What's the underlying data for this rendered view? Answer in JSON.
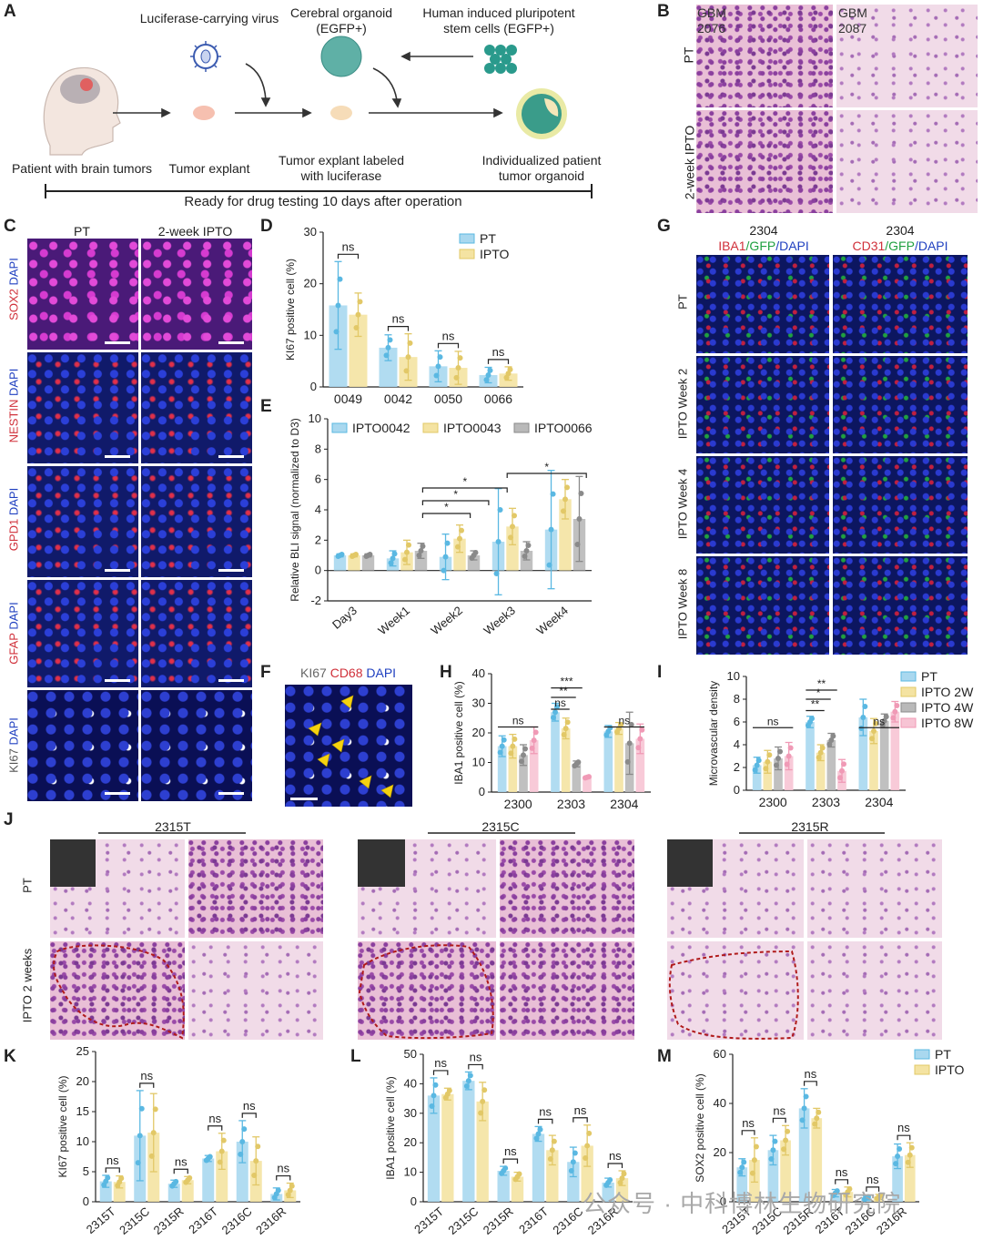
{
  "panel_letters": {
    "A": "A",
    "B": "B",
    "C": "C",
    "D": "D",
    "E": "E",
    "F": "F",
    "G": "G",
    "H": "H",
    "I": "I",
    "J": "J",
    "K": "K",
    "L": "L",
    "M": "M"
  },
  "panelA": {
    "virus": "Luciferase-carrying virus",
    "organoid": "Cerebral organoid\n(EGFP+)",
    "ipsc": "Human induced pluripotent\nstem cells (EGFP+)",
    "patient": "Patient with brain tumors",
    "explant": "Tumor explant",
    "labeled": "Tumor explant labeled\nwith luciferase",
    "individual": "Individualized patient\ntumor organoid",
    "timeline": "Ready for drug testing 10 days after operation"
  },
  "panelB": {
    "col1": "GBM\n2076",
    "col2": "GBM\n2087",
    "row1": "PT",
    "row2": "2-week IPTO"
  },
  "panelC": {
    "col1": "PT",
    "col2": "2-week IPTO",
    "rows": [
      {
        "marker": "SOX2",
        "dapi": "DAPI"
      },
      {
        "marker": "NESTIN",
        "dapi": "DAPI"
      },
      {
        "marker": "GPD1",
        "dapi": "DAPI"
      },
      {
        "marker": "GFAP",
        "dapi": "DAPI"
      },
      {
        "marker": "KI67",
        "dapi": "DAPI"
      }
    ]
  },
  "panelF": {
    "a": "KI67",
    "b": "CD68",
    "c": "DAPI"
  },
  "panelG": {
    "col1_id": "2304",
    "col2_id": "2304",
    "col1_stain": {
      "a": "IBA1",
      "b": "/GFP",
      "c": "/DAPI"
    },
    "col2_stain": {
      "a": "CD31",
      "b": "/GFP",
      "c": "/DAPI"
    },
    "rows": [
      "PT",
      "IPTO Week 2",
      "IPTO Week 4",
      "IPTO Week 8"
    ]
  },
  "panelJ": {
    "cols": [
      "2315T",
      "2315C",
      "2315R"
    ],
    "rows": [
      "PT",
      "IPTO 2 weeks"
    ]
  },
  "watermark": "公众号 · 中科博林生物研究院",
  "colors": {
    "pt": "#a9d8ef",
    "ipto": "#f4e3a2",
    "grey": "#b9b9b9",
    "pink": "#f7c4d4",
    "pt_dot": "#5ab8e2",
    "ipto_dot": "#e2c867",
    "grey_dot": "#8a8a8a",
    "pink_dot": "#f09ab6",
    "red": "#c0392b",
    "blue": "#1f3fb0"
  },
  "chart_data": [
    {
      "id": "D",
      "type": "bar",
      "ylabel": "KI67 positive cell (%)",
      "ylim": [
        0,
        30
      ],
      "yticks": [
        "0",
        "10",
        "20",
        "30"
      ],
      "categories": [
        "0049",
        "0042",
        "0050",
        "0066"
      ],
      "series": [
        {
          "name": "PT",
          "values": [
            15.8,
            7.6,
            4.0,
            2.3
          ],
          "err": [
            8.5,
            2.5,
            3.0,
            1.5
          ]
        },
        {
          "name": "IPTO",
          "values": [
            14.0,
            5.8,
            3.7,
            2.6
          ],
          "err": [
            4.2,
            4.5,
            3.2,
            1.3
          ]
        }
      ],
      "sig": [
        "ns",
        "ns",
        "ns",
        "ns"
      ]
    },
    {
      "id": "E",
      "type": "bar",
      "ylabel": "Relative BLI signal (normalized to D3)",
      "ylim": [
        -2,
        10
      ],
      "yticks": [
        "-2",
        "0",
        "2",
        "4",
        "6",
        "8",
        "10"
      ],
      "categories": [
        "Day3",
        "Week1",
        "Week2",
        "Week3",
        "Week4"
      ],
      "series": [
        {
          "name": "IPTO0042",
          "values": [
            1.0,
            0.8,
            0.9,
            1.9,
            2.7
          ],
          "err": [
            0.1,
            0.5,
            1.5,
            3.5,
            3.9
          ]
        },
        {
          "name": "IPTO0043",
          "values": [
            1.0,
            1.2,
            2.1,
            2.9,
            4.7
          ],
          "err": [
            0.1,
            0.8,
            0.9,
            1.2,
            1.3
          ]
        },
        {
          "name": "IPTO0066",
          "values": [
            1.0,
            1.3,
            1.0,
            1.3,
            3.4
          ],
          "err": [
            0.1,
            0.5,
            0.3,
            0.6,
            2.8
          ]
        }
      ],
      "sig": [
        "*",
        "*",
        "*",
        "*"
      ]
    },
    {
      "id": "H",
      "type": "bar",
      "ylabel": "IBA1 positive cell (%)",
      "ylim": [
        0,
        40
      ],
      "yticks": [
        "0",
        "10",
        "20",
        "30",
        "40"
      ],
      "categories": [
        "2300",
        "2303",
        "2304"
      ],
      "series": [
        {
          "name": "PT",
          "values": [
            15.5,
            27.0,
            20.5
          ],
          "err": [
            3.5,
            3.0,
            2.0
          ]
        },
        {
          "name": "IPTO 2W",
          "values": [
            15.5,
            21.5,
            21.5
          ],
          "err": [
            4.0,
            3.5,
            2.0
          ]
        },
        {
          "name": "IPTO 4W",
          "values": [
            12.5,
            9.5,
            16.5
          ],
          "err": [
            3.5,
            1.0,
            10.5
          ]
        },
        {
          "name": "IPTO 8W",
          "values": [
            17.5,
            5.0,
            18.0
          ],
          "err": [
            4.5,
            0.3,
            5.0
          ]
        }
      ],
      "sig": [
        "ns",
        "ns",
        "**",
        "***",
        "ns"
      ]
    },
    {
      "id": "I",
      "type": "bar",
      "ylabel": "Microvascular density",
      "ylim": [
        0,
        10
      ],
      "yticks": [
        "0",
        "2",
        "4",
        "6",
        "8",
        "10"
      ],
      "categories": [
        "2300",
        "2303",
        "2304"
      ],
      "series": [
        {
          "name": "PT",
          "values": [
            2.2,
            6.0,
            6.4
          ],
          "err": [
            0.7,
            0.5,
            1.6
          ]
        },
        {
          "name": "IPTO 2W",
          "values": [
            2.5,
            3.3,
            5.2
          ],
          "err": [
            1.0,
            0.7,
            1.1
          ]
        },
        {
          "name": "IPTO 4W",
          "values": [
            2.8,
            4.4,
            6.1
          ],
          "err": [
            1.0,
            0.6,
            0.6
          ]
        },
        {
          "name": "IPTO 8W",
          "values": [
            3.0,
            1.7,
            6.9
          ],
          "err": [
            1.2,
            1.0,
            0.9
          ]
        }
      ],
      "sig": [
        "ns",
        "**",
        "*",
        "**",
        "ns"
      ]
    },
    {
      "id": "K",
      "type": "bar",
      "ylabel": "KI67 positive cell (%)",
      "ylim": [
        0,
        25
      ],
      "yticks": [
        "0",
        "5",
        "10",
        "15",
        "20",
        "25"
      ],
      "categories": [
        "2315T",
        "2315C",
        "2315R",
        "2316T",
        "2316C",
        "2316R"
      ],
      "series": [
        {
          "name": "PT",
          "values": [
            3.4,
            11.0,
            3.0,
            7.2,
            10.0,
            1.3
          ],
          "err": [
            1.0,
            7.5,
            0.6,
            0.5,
            3.5,
            1.0
          ]
        },
        {
          "name": "IPTO",
          "values": [
            3.3,
            11.5,
            3.6,
            8.4,
            6.8,
            1.9
          ],
          "err": [
            1.0,
            6.5,
            0.6,
            3.0,
            4.0,
            1.2
          ]
        }
      ],
      "sig": [
        "ns",
        "ns",
        "ns",
        "ns",
        "ns",
        "ns"
      ]
    },
    {
      "id": "L",
      "type": "bar",
      "ylabel": "IBA1 positive cell (%)",
      "ylim": [
        0,
        50
      ],
      "yticks": [
        "0",
        "10",
        "20",
        "30",
        "40",
        "50"
      ],
      "categories": [
        "2315T",
        "2315C",
        "2315R",
        "2316T",
        "2316C",
        "2316R"
      ],
      "series": [
        {
          "name": "PT",
          "values": [
            36.0,
            41.0,
            10.5,
            23.0,
            13.5,
            6.5
          ],
          "err": [
            6.0,
            3.0,
            1.5,
            2.5,
            5.0,
            1.5
          ]
        },
        {
          "name": "IPTO",
          "values": [
            36.5,
            34.0,
            8.5,
            17.5,
            19.0,
            8.0
          ],
          "err": [
            2.0,
            6.5,
            1.5,
            5.0,
            7.0,
            2.5
          ]
        }
      ],
      "sig": [
        "ns",
        "ns",
        "ns",
        "ns",
        "ns",
        "ns"
      ]
    },
    {
      "id": "M",
      "type": "bar",
      "ylabel": "SOX2 positive cell (%)",
      "ylim": [
        0,
        60
      ],
      "yticks": [
        "0",
        "20",
        "40",
        "60"
      ],
      "categories": [
        "2315T",
        "2315C",
        "2315R",
        "2316T",
        "2316C",
        "2316R"
      ],
      "series": [
        {
          "name": "PT",
          "values": [
            14.0,
            21.0,
            38.0,
            3.5,
            1.5,
            18.5
          ],
          "err": [
            3.5,
            6.0,
            8.0,
            1.5,
            0.8,
            5.0
          ]
        },
        {
          "name": "IPTO",
          "values": [
            17.0,
            25.0,
            34.0,
            4.0,
            2.0,
            19.0
          ],
          "err": [
            9.0,
            6.0,
            4.0,
            2.0,
            1.0,
            5.0
          ]
        }
      ],
      "sig": [
        "ns",
        "ns",
        "ns",
        "ns",
        "ns",
        "ns"
      ]
    }
  ]
}
